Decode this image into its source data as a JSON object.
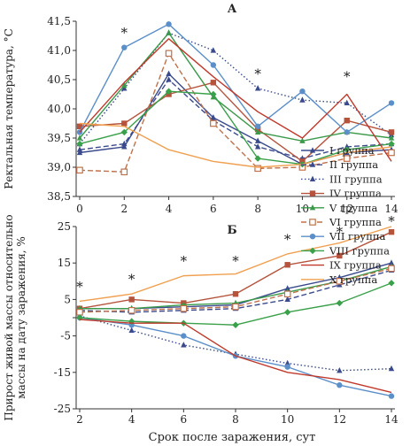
{
  "chart_data": [
    {
      "type": "line",
      "title": "А",
      "xlabel": "",
      "ylabel": "Ректальная температура, °C",
      "x": [
        0,
        2,
        4,
        6,
        8,
        10,
        12,
        14
      ],
      "x_ticks": [
        "0",
        "2",
        "4",
        "6",
        "8",
        "10",
        "12",
        "14"
      ],
      "ylim": [
        38.5,
        41.5
      ],
      "y_ticks": [
        "38,5",
        "39,0",
        "39,5",
        "40,0",
        "40,5",
        "41,0",
        "41,5"
      ],
      "grid": false,
      "annotations": [
        {
          "x": 2,
          "y": 41.3,
          "text": "*"
        },
        {
          "x": 8,
          "y": 40.6,
          "text": "*"
        },
        {
          "x": 12,
          "y": 40.55,
          "text": "*"
        }
      ],
      "series": [
        {
          "name": "I группа",
          "color": "#3a4a8c",
          "dash": "solid",
          "marker": "triangle",
          "values": [
            39.25,
            39.35,
            40.6,
            39.85,
            39.45,
            39.05,
            39.25,
            39.3
          ]
        },
        {
          "name": "II группа",
          "color": "#3a4a8c",
          "dash": "dashed",
          "marker": "triangle",
          "values": [
            39.3,
            39.4,
            40.5,
            39.8,
            39.35,
            39.15,
            39.35,
            39.4
          ]
        },
        {
          "name": "III группа",
          "color": "#3a4a8c",
          "dash": "dotted",
          "marker": "triangle",
          "values": [
            39.4,
            40.35,
            41.3,
            41.0,
            40.35,
            40.15,
            40.1,
            39.55
          ]
        },
        {
          "name": "IV группа",
          "color": "#b5533c",
          "dash": "solid",
          "marker": "square",
          "values": [
            39.7,
            39.75,
            40.25,
            40.45,
            39.65,
            39.1,
            39.8,
            39.6
          ]
        },
        {
          "name": "V группа",
          "color": "#3a9a4a",
          "dash": "solid",
          "marker": "triangle",
          "values": [
            39.5,
            40.4,
            41.3,
            40.2,
            39.6,
            39.45,
            39.6,
            39.5
          ]
        },
        {
          "name": "VI группа",
          "color": "#c0704a",
          "dash": "dashed",
          "marker": "open-square",
          "values": [
            38.95,
            38.92,
            40.95,
            39.75,
            38.98,
            39.0,
            39.15,
            39.25
          ]
        },
        {
          "name": "VII группа",
          "color": "#5b8fc9",
          "dash": "solid",
          "marker": "circle",
          "values": [
            39.6,
            41.05,
            41.45,
            40.75,
            39.7,
            40.3,
            39.6,
            40.1
          ]
        },
        {
          "name": "VIII группа",
          "color": "#3aa04a",
          "dash": "solid",
          "marker": "diamond",
          "values": [
            39.4,
            39.6,
            40.3,
            40.25,
            39.15,
            39.05,
            39.3,
            39.4
          ]
        },
        {
          "name": "IX группа",
          "color": "#c0392b",
          "dash": "solid",
          "marker": "none",
          "values": [
            39.6,
            40.45,
            41.2,
            40.55,
            39.95,
            39.5,
            40.25,
            39.1
          ]
        },
        {
          "name": "X группа",
          "color": "#f0a050",
          "dash": "solid",
          "marker": "none",
          "values": [
            39.75,
            39.7,
            39.3,
            39.1,
            39.0,
            39.05,
            39.25,
            39.35
          ]
        }
      ]
    },
    {
      "type": "line",
      "title": "Б",
      "xlabel": "Срок после заражения, сут",
      "ylabel": "Прирост живой массы относительно массы на дату заражения, %",
      "x": [
        2,
        4,
        6,
        8,
        10,
        12,
        14
      ],
      "x_ticks": [
        "2",
        "4",
        "6",
        "8",
        "10",
        "12",
        "14"
      ],
      "ylim": [
        -25,
        25
      ],
      "y_ticks": [
        "-25",
        "-15",
        "-5",
        "5",
        "15",
        "25"
      ],
      "grid": false,
      "annotations": [
        {
          "x": 2,
          "y": 8.5,
          "text": "*"
        },
        {
          "x": 4,
          "y": 10.5,
          "text": "*"
        },
        {
          "x": 6,
          "y": 15.5,
          "text": "*"
        },
        {
          "x": 8,
          "y": 15.5,
          "text": "*"
        },
        {
          "x": 10,
          "y": 21.5,
          "text": "*"
        },
        {
          "x": 12,
          "y": 23.5,
          "text": "*"
        },
        {
          "x": 14,
          "y": 26.5,
          "text": "*"
        }
      ],
      "series": [
        {
          "name": "I группа",
          "color": "#3a4a8c",
          "dash": "solid",
          "marker": "triangle",
          "values": [
            2.5,
            2.5,
            3.0,
            3.5,
            8.0,
            11.0,
            15.0
          ]
        },
        {
          "name": "II группа",
          "color": "#3a4a8c",
          "dash": "dashed",
          "marker": "triangle",
          "values": [
            2.0,
            1.5,
            2.0,
            2.5,
            5.0,
            9.0,
            13.0
          ]
        },
        {
          "name": "III группа",
          "color": "#3a4a8c",
          "dash": "dotted",
          "marker": "triangle",
          "values": [
            0.5,
            -3.5,
            -7.5,
            -10.0,
            -12.5,
            -14.5,
            -14.0
          ]
        },
        {
          "name": "IV группа",
          "color": "#b5533c",
          "dash": "solid",
          "marker": "square",
          "values": [
            2.5,
            5.0,
            4.0,
            6.5,
            14.5,
            17.0,
            23.5
          ]
        },
        {
          "name": "V группа",
          "color": "#3a9a4a",
          "dash": "solid",
          "marker": "triangle",
          "values": [
            2.5,
            2.5,
            3.5,
            4.0,
            7.0,
            10.0,
            14.0
          ]
        },
        {
          "name": "VI группа",
          "color": "#c0704a",
          "dash": "dashed",
          "marker": "open-square",
          "values": [
            1.5,
            2.0,
            2.5,
            3.0,
            6.5,
            10.0,
            13.5
          ]
        },
        {
          "name": "VII группа",
          "color": "#5b8fc9",
          "dash": "solid",
          "marker": "circle",
          "values": [
            0.0,
            -2.0,
            -5.0,
            -10.5,
            -13.5,
            -18.5,
            -21.5
          ]
        },
        {
          "name": "VIII группа",
          "color": "#3aa04a",
          "dash": "solid",
          "marker": "diamond",
          "values": [
            0.0,
            -1.0,
            -1.5,
            -2.0,
            1.5,
            4.0,
            9.5
          ]
        },
        {
          "name": "IX группа",
          "color": "#c0392b",
          "dash": "solid",
          "marker": "none",
          "values": [
            -0.5,
            -1.5,
            -1.5,
            -10.5,
            -15.0,
            -17.0,
            -20.5
          ]
        },
        {
          "name": "X группа",
          "color": "#f0a050",
          "dash": "solid",
          "marker": "none",
          "values": [
            4.5,
            6.5,
            11.5,
            12.0,
            17.5,
            20.5,
            25.0
          ]
        }
      ]
    }
  ]
}
